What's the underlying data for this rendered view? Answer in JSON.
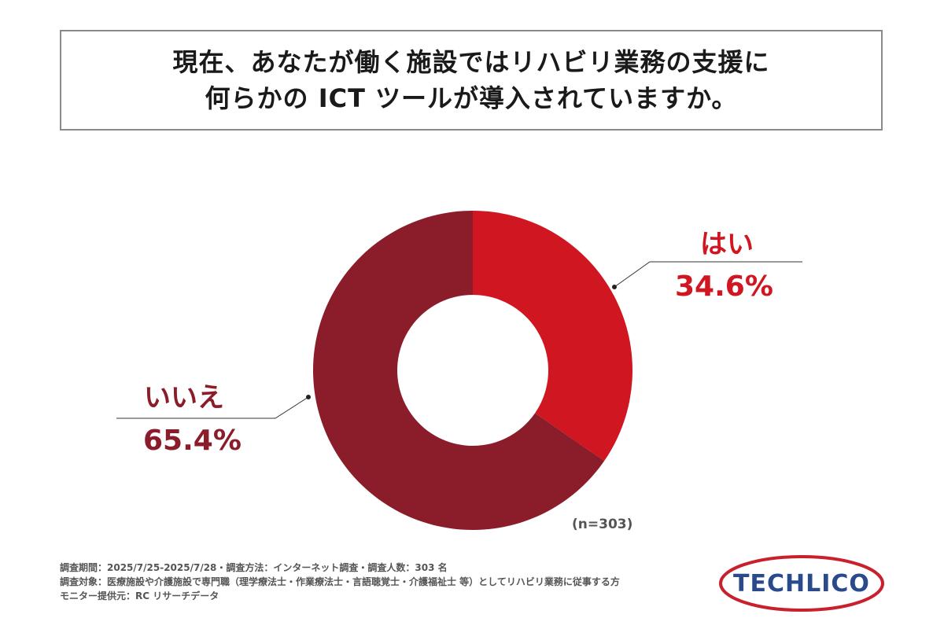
{
  "title": {
    "line1": "現在、あなたが働く施設ではリハビリ業務の支援に",
    "line2": "何らかの ICT ツールが導入されていますか。"
  },
  "chart_data": {
    "type": "pie",
    "variant": "donut",
    "slices": [
      {
        "label": "はい",
        "value": 34.6,
        "value_text": "34.6%",
        "color": "#d01621"
      },
      {
        "label": "いいえ",
        "value": 65.4,
        "value_text": "65.4%",
        "color": "#8b1c2a"
      }
    ],
    "sample_size": "(n=303)"
  },
  "footnotes": [
    "調査期間：2025/7/25-2025/7/28・調査方法：インターネット調査・調査人数：303 名",
    "調査対象：医療施設や介護施設で専門職（理学療法士・作業療法士・言語聴覚士・介護福祉士 等）としてリハビリ業務に従事する方",
    "モニター提供元：RC リサーチデータ"
  ],
  "logo": {
    "text": "TECHLICO",
    "text_color": "#2a4a8c",
    "ring_color": "#c8202d"
  }
}
